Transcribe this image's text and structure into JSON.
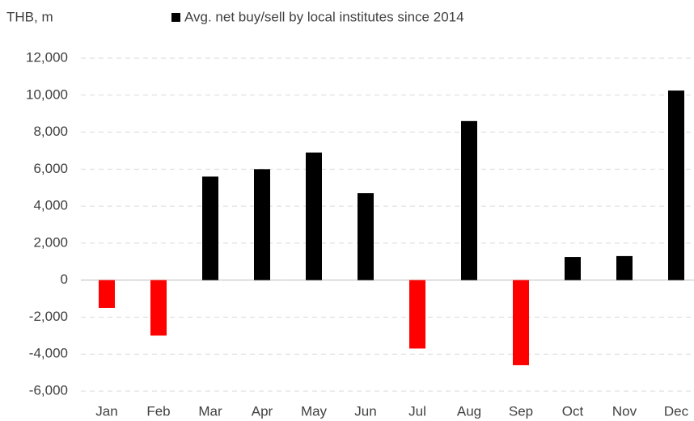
{
  "chart_data": {
    "type": "bar",
    "y_label": "THB, m",
    "categories": [
      "Jan",
      "Feb",
      "Mar",
      "Apr",
      "May",
      "Jun",
      "Jul",
      "Aug",
      "Sep",
      "Oct",
      "Nov",
      "Dec"
    ],
    "series": [
      {
        "name": "Avg. net buy/sell by local institutes since 2014",
        "color": "#000000",
        "values": [
          -1500,
          -3000,
          5600,
          6000,
          6900,
          4700,
          -3700,
          8600,
          -4600,
          1250,
          1300,
          10250
        ]
      }
    ],
    "negative_color": "#ff0000",
    "ylim": [
      -6000,
      12000
    ],
    "yticks": [
      {
        "value": -6000,
        "label": "-6,000"
      },
      {
        "value": -4000,
        "label": "-4,000"
      },
      {
        "value": -2000,
        "label": "-2,000"
      },
      0,
      {
        "value": 2000,
        "label": "2,000"
      },
      {
        "value": 4000,
        "label": "4,000"
      },
      {
        "value": 6000,
        "label": "6,000"
      },
      {
        "value": 8000,
        "label": "8,000"
      },
      {
        "value": 10000,
        "label": "10,000"
      },
      {
        "value": 12000,
        "label": "12,000"
      }
    ],
    "grid": true
  }
}
